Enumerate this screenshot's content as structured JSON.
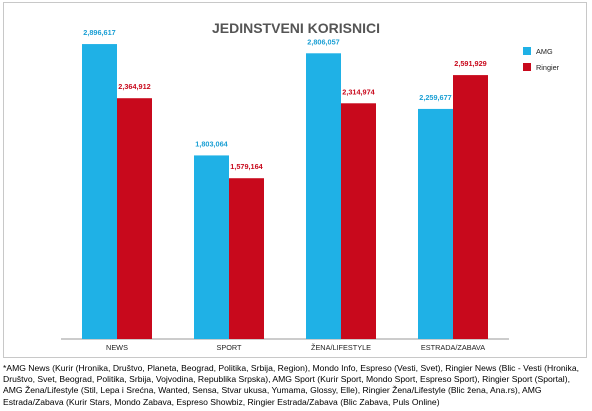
{
  "chart_data": {
    "type": "bar",
    "title": "JEDINSTVENI KORISNICI",
    "categories": [
      "NEWS",
      "SPORT",
      "ŽENA/LIFESTYLE",
      "ESTRADA/ZABAVA"
    ],
    "series": [
      {
        "name": "AMG",
        "color": "#1fb1e6",
        "values": [
          2896617,
          1803064,
          2806057,
          2259677
        ],
        "labels": [
          "2,896,617",
          "1,803,064",
          "2,806,057",
          "2,259,677"
        ],
        "label_color": "#1a9fd4"
      },
      {
        "name": "Ringier",
        "color": "#c8091c",
        "values": [
          2364912,
          1579164,
          2314974,
          2591929
        ],
        "labels": [
          "2,364,912",
          "1,579,164",
          "2,314,974",
          "2,591,929"
        ],
        "label_color": "#c8091c"
      }
    ],
    "ylim": [
      0,
      3300000
    ],
    "grid": false,
    "legend": "top-right"
  },
  "footnote": "*AMG News (Kurir (Hronika, Društvo, Planeta, Beograd, Politika, Srbija, Region), Mondo Info, Espreso (Vesti, Svet), Ringier News (Blic - Vesti (Hronika, Društvo, Svet, Beograd, Politika, Srbija, Vojvodina, Republika Srpska), AMG Sport (Kurir Sport, Mondo Sport, Espreso Sport), Ringier Sport (Sportal), AMG Žena/Lifestyle (Stil, Lepa i Srećna, Wanted, Sensa, Stvar ukusa, Yumama, Glossy, Elle), Ringier Žena/Lifestyle (Blic žena, Ana.rs), AMG Estrada/Zabava (Kurir Stars, Mondo Zabava, Espreso Showbiz, Ringier Estrada/Zabava (Blic Zabava, Puls Online)"
}
